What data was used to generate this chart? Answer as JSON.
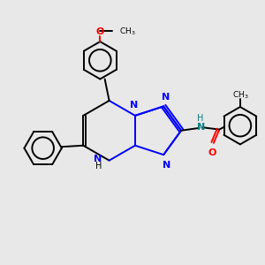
{
  "bg_color": "#e8e8e8",
  "bond_color": "#000000",
  "N_color": "#0000ff",
  "O_color": "#ff0000",
  "NH_color": "#008080",
  "line_width": 1.4,
  "figsize": [
    3.0,
    3.0
  ],
  "dpi": 100,
  "xlim": [
    0,
    10
  ],
  "ylim": [
    0,
    10
  ]
}
